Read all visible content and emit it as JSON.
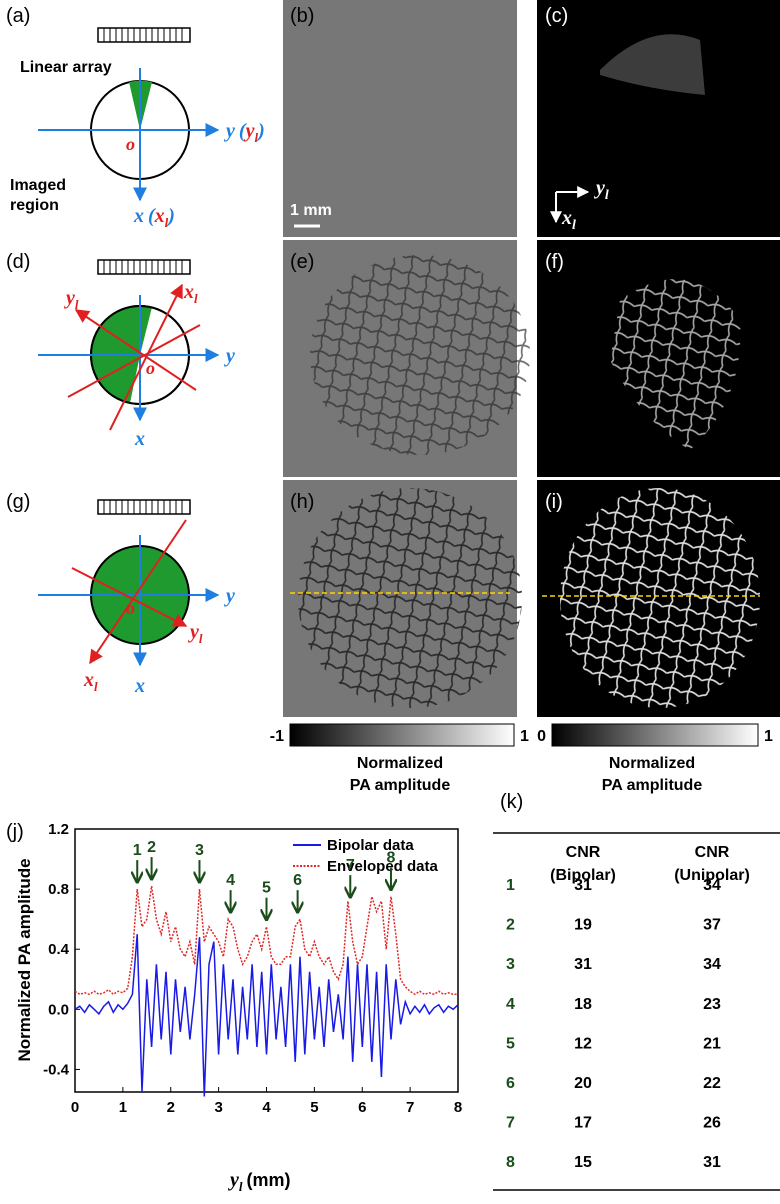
{
  "panels": {
    "a": "(a)",
    "b": "(b)",
    "c": "(c)",
    "d": "(d)",
    "e": "(e)",
    "f": "(f)",
    "g": "(g)",
    "h": "(h)",
    "i": "(i)",
    "j": "(j)",
    "k": "(k)"
  },
  "diagram_a": {
    "array": "Linear array",
    "region": [
      "Imaged",
      "region"
    ],
    "y": "y",
    "y_l": [
      "(",
      "y",
      "l",
      ")"
    ],
    "x": "x",
    "x_l": [
      "(",
      "x",
      "l",
      ")"
    ],
    "origin": "o"
  },
  "diagram_d": {
    "y_l": [
      "y",
      "l"
    ],
    "x_l": [
      "x",
      "l"
    ],
    "y": "y",
    "x": "x",
    "origin": "o"
  },
  "diagram_g": {
    "y_l": [
      "y",
      "l"
    ],
    "x_l": [
      "x",
      "l"
    ],
    "y": "y",
    "x": "x",
    "origin": "o"
  },
  "scale_bar": "1 mm",
  "image_c_axes": {
    "y": [
      "y",
      "l"
    ],
    "x": [
      "x",
      "l"
    ]
  },
  "colorbars": [
    {
      "min": -1,
      "max": 1,
      "caption": [
        "Normalized",
        "PA amplitude"
      ]
    },
    {
      "min": 0,
      "max": 1,
      "caption": [
        "Normalized",
        "PA amplitude"
      ]
    }
  ],
  "chart_data": {
    "type": "line",
    "y_label": "Normalized PA amplitude",
    "x_label": {
      "symbol": "y",
      "subscript": "l",
      "unit": "(mm)"
    },
    "xlim": [
      0,
      8
    ],
    "xticks": [
      0,
      1,
      2,
      3,
      4,
      5,
      6,
      7,
      8
    ],
    "ylim": [
      -0.55,
      1.2
    ],
    "yticks": [
      -0.4,
      {
        "value": 0,
        "label": "0.0"
      },
      0.4,
      0.8,
      1.2
    ],
    "legend": "upper right",
    "x": [
      0,
      0.1,
      0.2,
      0.3,
      0.4,
      0.5,
      0.6,
      0.7,
      0.8,
      0.9,
      1.0,
      1.1,
      1.2,
      1.3,
      1.4,
      1.5,
      1.6,
      1.7,
      1.8,
      1.9,
      2.0,
      2.1,
      2.2,
      2.3,
      2.4,
      2.5,
      2.6,
      2.7,
      2.8,
      2.9,
      3.0,
      3.1,
      3.2,
      3.3,
      3.4,
      3.5,
      3.6,
      3.7,
      3.8,
      3.9,
      4.0,
      4.1,
      4.2,
      4.3,
      4.4,
      4.5,
      4.6,
      4.7,
      4.8,
      4.9,
      5.0,
      5.1,
      5.2,
      5.3,
      5.4,
      5.5,
      5.6,
      5.7,
      5.8,
      5.9,
      6.0,
      6.1,
      6.2,
      6.3,
      6.4,
      6.5,
      6.6,
      6.7,
      6.8,
      6.9,
      7.0,
      7.1,
      7.2,
      7.3,
      7.4,
      7.5,
      7.6,
      7.7,
      7.8,
      7.9,
      8.0
    ],
    "series": [
      {
        "name": "Bipolar data",
        "color": "#1a1ae6",
        "style": "solid",
        "values": [
          0,
          0.02,
          -0.02,
          0.03,
          0,
          -0.03,
          0.02,
          0.05,
          -0.02,
          0.03,
          0,
          0.04,
          0.1,
          0.5,
          -0.55,
          0.2,
          -0.25,
          0.3,
          -0.2,
          0.25,
          -0.3,
          0.2,
          -0.15,
          0.15,
          -0.2,
          0.1,
          0.48,
          -0.58,
          0.3,
          0.45,
          -0.3,
          0.3,
          -0.2,
          0.2,
          -0.3,
          0.15,
          -0.2,
          0.3,
          -0.25,
          0.25,
          -0.3,
          0.3,
          -0.2,
          0.15,
          -0.25,
          0.3,
          -0.35,
          0.35,
          -0.3,
          0.25,
          -0.2,
          0.15,
          -0.25,
          0.2,
          -0.15,
          0.1,
          -0.2,
          0.35,
          -0.35,
          0.3,
          -0.25,
          0.3,
          -0.35,
          0.25,
          -0.45,
          0.3,
          -0.2,
          0.2,
          -0.1,
          0.05,
          -0.03,
          0.02,
          -0.02,
          0.03,
          -0.03,
          0.01,
          0.03,
          -0.02,
          0.02,
          0,
          0.03
        ]
      },
      {
        "name": "Enveloped data",
        "color": "#e02828",
        "style": "dotted",
        "values": [
          0.12,
          0.1,
          0.11,
          0.1,
          0.12,
          0.1,
          0.11,
          0.13,
          0.1,
          0.12,
          0.11,
          0.14,
          0.35,
          0.8,
          0.55,
          0.6,
          0.82,
          0.6,
          0.5,
          0.65,
          0.45,
          0.55,
          0.4,
          0.35,
          0.45,
          0.3,
          0.8,
          0.45,
          0.55,
          0.5,
          0.45,
          0.35,
          0.6,
          0.55,
          0.4,
          0.3,
          0.35,
          0.45,
          0.5,
          0.4,
          0.55,
          0.35,
          0.3,
          0.3,
          0.35,
          0.35,
          0.55,
          0.6,
          0.4,
          0.35,
          0.45,
          0.35,
          0.3,
          0.35,
          0.25,
          0.2,
          0.3,
          0.72,
          0.45,
          0.3,
          0.35,
          0.55,
          0.75,
          0.65,
          0.72,
          0.4,
          0.75,
          0.5,
          0.2,
          0.15,
          0.12,
          0.1,
          0.12,
          0.1,
          0.11,
          0.1,
          0.12,
          0.1,
          0.11,
          0.1,
          0.1
        ]
      }
    ],
    "annotations": [
      {
        "label": "1",
        "x": 1.3,
        "y": 0.82
      },
      {
        "label": "2",
        "x": 1.6,
        "y": 0.84
      },
      {
        "label": "3",
        "x": 2.6,
        "y": 0.82
      },
      {
        "label": "4",
        "x": 3.25,
        "y": 0.62
      },
      {
        "label": "5",
        "x": 4.0,
        "y": 0.57
      },
      {
        "label": "6",
        "x": 4.65,
        "y": 0.62
      },
      {
        "label": "7",
        "x": 5.75,
        "y": 0.72
      },
      {
        "label": "8",
        "x": 6.6,
        "y": 0.77
      }
    ]
  },
  "table": {
    "columns": [
      {
        "line1": "CNR",
        "line2": "(Bipolar)"
      },
      {
        "line1": "CNR",
        "line2": "(Unipolar)"
      }
    ],
    "rows": [
      [
        1,
        31,
        34
      ],
      [
        2,
        19,
        37
      ],
      [
        3,
        31,
        34
      ],
      [
        4,
        18,
        23
      ],
      [
        5,
        12,
        21
      ],
      [
        6,
        20,
        22
      ],
      [
        7,
        17,
        26
      ],
      [
        8,
        15,
        31
      ]
    ]
  }
}
